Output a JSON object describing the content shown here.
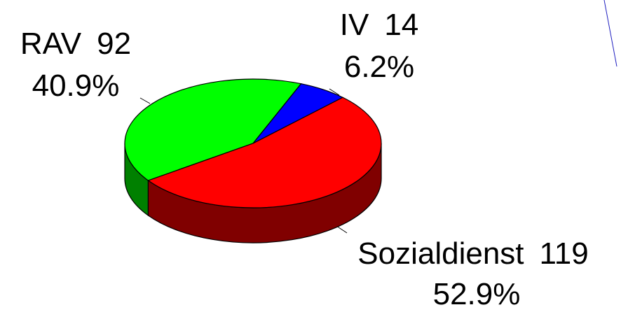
{
  "chart_data": {
    "type": "pie3d",
    "categories": [
      "RAV",
      "IV",
      "Sozialdienst"
    ],
    "values": [
      92,
      14,
      119
    ],
    "percent_labels": [
      "40.9%",
      "6.2%",
      "52.9%"
    ],
    "colors": [
      "#00ff00",
      "#0000ff",
      "#ff0000"
    ],
    "side_colors": [
      "#008000",
      "#00008b",
      "#800000"
    ]
  }
}
